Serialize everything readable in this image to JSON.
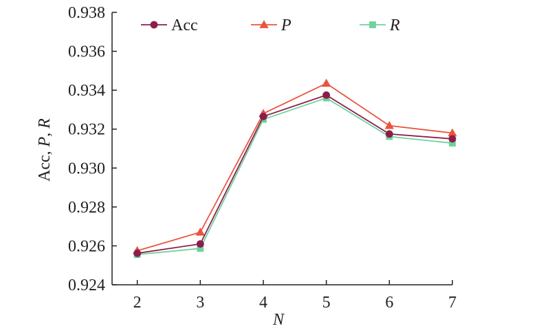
{
  "chart_data": {
    "type": "line",
    "x": [
      2,
      3,
      4,
      5,
      6,
      7
    ],
    "xlabel": "N",
    "ylabel": "Acc, P, R",
    "xlim": [
      1.6,
      7
    ],
    "ylim": [
      0.924,
      0.938
    ],
    "xticks": [
      "2",
      "3",
      "4",
      "5",
      "6",
      "7"
    ],
    "yticks": [
      "0.924",
      "0.926",
      "0.928",
      "0.930",
      "0.932",
      "0.934",
      "0.936",
      "0.938"
    ],
    "grid": false,
    "legend_position": "top",
    "series": [
      {
        "name": "Acc",
        "italic": false,
        "marker": "circle",
        "color": "#8b1e4b",
        "values": [
          0.92562,
          0.9261,
          0.93265,
          0.93375,
          0.93175,
          0.9315
        ]
      },
      {
        "name": "P",
        "italic": true,
        "marker": "triangle",
        "color": "#e8553e",
        "values": [
          0.92575,
          0.9267,
          0.9328,
          0.93435,
          0.93218,
          0.9318
        ]
      },
      {
        "name": "R",
        "italic": true,
        "marker": "square",
        "color": "#6fd29c",
        "values": [
          0.92555,
          0.92587,
          0.9325,
          0.9336,
          0.93162,
          0.93128
        ]
      }
    ]
  }
}
